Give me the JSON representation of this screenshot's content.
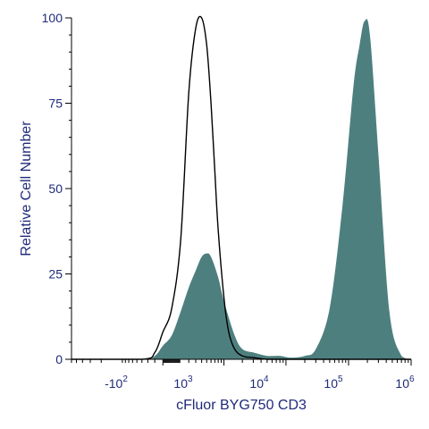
{
  "chart_data": {
    "type": "area",
    "xlabel": "cFluor BYG750 CD3",
    "ylabel": "Relative Cell Number",
    "ylim": [
      0,
      100
    ],
    "xscale": "biexponential",
    "yticks": [
      {
        "value": 0,
        "label": "0"
      },
      {
        "value": 25,
        "label": "25"
      },
      {
        "value": 50,
        "label": "50"
      },
      {
        "value": 75,
        "label": "75"
      },
      {
        "value": 100,
        "label": "100"
      }
    ],
    "xticks": [
      {
        "base": "-10",
        "exp": "2"
      },
      {
        "base": "10",
        "exp": "3"
      },
      {
        "base": "10",
        "exp": "4"
      },
      {
        "base": "10",
        "exp": "5"
      },
      {
        "base": "10",
        "exp": "6"
      }
    ],
    "colors": {
      "stained_fill": "#4e7f7f",
      "unstained_line": "#000000",
      "axis_text": "#1f2a7a"
    },
    "series": [
      {
        "style": "filled",
        "x": [
          -6000,
          -400,
          -200,
          -100,
          0,
          100,
          200,
          300,
          400,
          500,
          600,
          800,
          1000,
          1500,
          2000,
          3000,
          5000,
          8000,
          12000,
          20000,
          30000,
          50000,
          80000,
          120000,
          150000,
          180000,
          220000,
          300000,
          450000,
          700000,
          1000000
        ],
        "values": [
          0,
          0,
          1,
          4,
          7,
          14,
          21,
          26,
          30,
          31,
          30,
          24,
          17,
          7,
          3,
          2,
          1,
          1,
          0.5,
          1,
          3,
          15,
          45,
          80,
          92,
          99,
          95,
          60,
          14,
          1,
          0
        ]
      },
      {
        "style": "outline",
        "x": [
          -6000,
          -400,
          -200,
          -100,
          0,
          100,
          200,
          300,
          400,
          500,
          600,
          700,
          800,
          1000,
          1200,
          1500,
          2000,
          3000,
          5000,
          10000,
          1000000
        ],
        "values": [
          0,
          0,
          2,
          8,
          15,
          35,
          78,
          97,
          100,
          92,
          75,
          55,
          38,
          18,
          8,
          3,
          1,
          0.5,
          0,
          0,
          0
        ]
      }
    ]
  }
}
